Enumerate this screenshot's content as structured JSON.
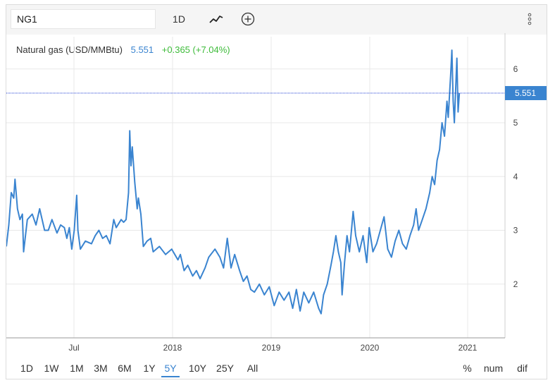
{
  "toolbar": {
    "symbol": "NG1",
    "interval": "1D",
    "chart_type_icon": "line-chart-icon",
    "compare_icon": "plus-circle-icon",
    "menu_icon": "vertical-dots-icon"
  },
  "legend": {
    "name": "Natural gas (USD/MMBtu)",
    "last": "5.551",
    "change": "+0.365 (+7.04%)"
  },
  "price_tag": "5.551",
  "ranges": [
    "1D",
    "1W",
    "1M",
    "3M",
    "6M",
    "1Y",
    "5Y",
    "10Y",
    "25Y",
    "All"
  ],
  "active_range": "5Y",
  "scale_modes": [
    "%",
    "num",
    "dif"
  ],
  "colors": {
    "line": "#3a84d0",
    "up": "#3dbb39",
    "accent": "#3a84d0",
    "grid": "#e8e8e8"
  },
  "chart_data": {
    "type": "line",
    "title": "Natural gas (USD/MMBtu)",
    "xlabel": "",
    "ylabel": "",
    "x_ticks": [
      "Jul",
      "2018",
      "2019",
      "2020",
      "2021"
    ],
    "y_ticks": [
      2,
      3,
      4,
      5,
      6
    ],
    "ylim": [
      1.0,
      6.6
    ],
    "grid": true,
    "last_value": 5.551,
    "series": [
      {
        "values": [
          [
            2017.31,
            2.7
          ],
          [
            2017.33,
            3.1
          ],
          [
            2017.35,
            3.7
          ],
          [
            2017.37,
            3.6
          ],
          [
            2017.38,
            3.95
          ],
          [
            2017.4,
            3.4
          ],
          [
            2017.42,
            3.2
          ],
          [
            2017.44,
            3.3
          ],
          [
            2017.45,
            2.6
          ],
          [
            2017.48,
            3.2
          ],
          [
            2017.52,
            3.3
          ],
          [
            2017.55,
            3.1
          ],
          [
            2017.58,
            3.4
          ],
          [
            2017.62,
            3.0
          ],
          [
            2017.65,
            3.0
          ],
          [
            2017.68,
            3.2
          ],
          [
            2017.72,
            2.95
          ],
          [
            2017.75,
            3.1
          ],
          [
            2017.78,
            3.05
          ],
          [
            2017.8,
            2.85
          ],
          [
            2017.82,
            3.05
          ],
          [
            2017.84,
            2.65
          ],
          [
            2017.86,
            3.0
          ],
          [
            2017.88,
            3.65
          ],
          [
            2017.89,
            3.0
          ],
          [
            2017.91,
            2.65
          ],
          [
            2017.95,
            2.8
          ],
          [
            2018.0,
            2.75
          ],
          [
            2018.03,
            2.9
          ],
          [
            2018.06,
            3.0
          ],
          [
            2018.09,
            2.85
          ],
          [
            2018.12,
            2.9
          ],
          [
            2018.15,
            2.75
          ],
          [
            2018.18,
            3.2
          ],
          [
            2018.2,
            3.05
          ],
          [
            2018.24,
            3.2
          ],
          [
            2018.26,
            3.15
          ],
          [
            2018.28,
            3.2
          ],
          [
            2018.3,
            3.7
          ],
          [
            2018.31,
            4.85
          ],
          [
            2018.32,
            4.2
          ],
          [
            2018.33,
            4.55
          ],
          [
            2018.35,
            3.9
          ],
          [
            2018.37,
            3.4
          ],
          [
            2018.38,
            3.6
          ],
          [
            2018.4,
            3.3
          ],
          [
            2018.42,
            2.7
          ],
          [
            2018.45,
            2.8
          ],
          [
            2018.48,
            2.85
          ],
          [
            2018.5,
            2.6
          ],
          [
            2018.55,
            2.7
          ],
          [
            2018.6,
            2.55
          ],
          [
            2018.65,
            2.65
          ],
          [
            2018.7,
            2.45
          ],
          [
            2018.72,
            2.55
          ],
          [
            2018.75,
            2.25
          ],
          [
            2018.78,
            2.35
          ],
          [
            2018.82,
            2.15
          ],
          [
            2018.85,
            2.25
          ],
          [
            2018.88,
            2.1
          ],
          [
            2018.92,
            2.3
          ],
          [
            2018.95,
            2.5
          ],
          [
            2019.0,
            2.65
          ],
          [
            2019.04,
            2.5
          ],
          [
            2019.07,
            2.3
          ],
          [
            2019.1,
            2.85
          ],
          [
            2019.13,
            2.3
          ],
          [
            2019.16,
            2.55
          ],
          [
            2019.2,
            2.25
          ],
          [
            2019.23,
            2.05
          ],
          [
            2019.26,
            2.15
          ],
          [
            2019.29,
            1.9
          ],
          [
            2019.32,
            1.85
          ],
          [
            2019.36,
            2.0
          ],
          [
            2019.4,
            1.8
          ],
          [
            2019.44,
            1.95
          ],
          [
            2019.48,
            1.6
          ],
          [
            2019.52,
            1.85
          ],
          [
            2019.56,
            1.7
          ],
          [
            2019.6,
            1.85
          ],
          [
            2019.63,
            1.55
          ],
          [
            2019.66,
            1.9
          ],
          [
            2019.69,
            1.5
          ],
          [
            2019.72,
            1.85
          ],
          [
            2019.76,
            1.65
          ],
          [
            2019.8,
            1.85
          ],
          [
            2019.84,
            1.55
          ],
          [
            2019.86,
            1.45
          ],
          [
            2019.88,
            1.8
          ],
          [
            2019.91,
            2.0
          ],
          [
            2019.94,
            2.35
          ],
          [
            2019.96,
            2.6
          ],
          [
            2019.98,
            2.9
          ],
          [
            2020.0,
            2.6
          ],
          [
            2020.02,
            2.4
          ],
          [
            2020.03,
            1.8
          ],
          [
            2020.05,
            2.4
          ],
          [
            2020.07,
            2.9
          ],
          [
            2020.09,
            2.6
          ],
          [
            2020.11,
            3.1
          ],
          [
            2020.12,
            3.35
          ],
          [
            2020.14,
            2.9
          ],
          [
            2020.17,
            2.6
          ],
          [
            2020.2,
            2.9
          ],
          [
            2020.23,
            2.4
          ],
          [
            2020.25,
            3.05
          ],
          [
            2020.28,
            2.6
          ],
          [
            2020.31,
            2.75
          ],
          [
            2020.34,
            3.0
          ],
          [
            2020.37,
            3.25
          ],
          [
            2020.4,
            2.65
          ],
          [
            2020.43,
            2.5
          ],
          [
            2020.46,
            2.8
          ],
          [
            2020.49,
            3.0
          ],
          [
            2020.52,
            2.75
          ],
          [
            2020.55,
            2.65
          ],
          [
            2020.58,
            2.9
          ],
          [
            2020.61,
            3.1
          ],
          [
            2020.63,
            3.4
          ],
          [
            2020.65,
            3.0
          ],
          [
            2020.68,
            3.2
          ],
          [
            2020.71,
            3.4
          ],
          [
            2020.74,
            3.7
          ],
          [
            2020.76,
            4.0
          ],
          [
            2020.78,
            3.85
          ],
          [
            2020.8,
            4.3
          ],
          [
            2020.82,
            4.5
          ],
          [
            2020.84,
            5.0
          ],
          [
            2020.86,
            4.75
          ],
          [
            2020.88,
            5.4
          ],
          [
            2020.89,
            5.1
          ],
          [
            2020.91,
            5.9
          ],
          [
            2020.92,
            6.35
          ],
          [
            2020.93,
            5.4
          ],
          [
            2020.94,
            5.0
          ],
          [
            2020.96,
            6.2
          ],
          [
            2020.97,
            5.2
          ],
          [
            2020.98,
            5.55
          ]
        ]
      }
    ]
  }
}
